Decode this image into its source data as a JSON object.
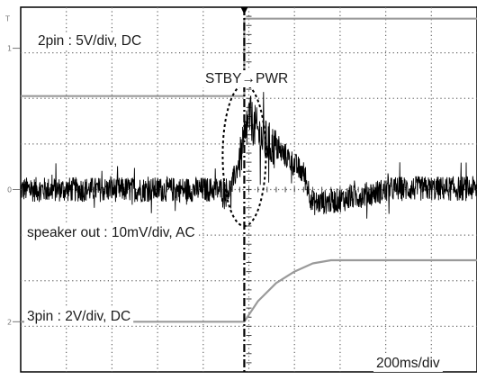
{
  "chart_data": {
    "type": "line",
    "title": "",
    "xlabel": "",
    "ylabel": "",
    "time_scale": "200ms/div",
    "grid": true,
    "divisions": {
      "x": 10,
      "y": 8
    },
    "event_label": "STBY→PWR",
    "x_unit": "div",
    "xlim": [
      0,
      10
    ],
    "ylim": [
      -4,
      4
    ],
    "series": [
      {
        "name": "2pin : 5V/div, DC",
        "channel_marker": "1",
        "ground_level_div": 3.1,
        "color": "#9a9a9a",
        "x": [
          0,
          4.9,
          4.9,
          10
        ],
        "y": [
          2.05,
          2.05,
          3.75,
          3.75
        ]
      },
      {
        "name": "speaker out : 10mV/div, AC",
        "channel_marker": "0",
        "ground_level_div": 0.0,
        "color": "#000000",
        "envelope": {
          "x": [
            0,
            4.6,
            4.9,
            5.0,
            5.3,
            5.8,
            6.2,
            6.4,
            6.9,
            7.5,
            8.2,
            10
          ],
          "y": [
            0.0,
            0.0,
            1.0,
            1.6,
            1.1,
            0.75,
            0.35,
            -0.3,
            -0.25,
            -0.12,
            0.02,
            0.02
          ],
          "noise_pp_div": 0.55
        }
      },
      {
        "name": "3pin : 2V/div, DC",
        "channel_marker": "2",
        "ground_level_div": -2.9,
        "color": "#9a9a9a",
        "x": [
          0,
          4.9,
          5.2,
          5.6,
          6.0,
          6.4,
          6.8,
          10
        ],
        "y": [
          -2.9,
          -2.9,
          -2.45,
          -2.05,
          -1.8,
          -1.62,
          -1.55,
          -1.55
        ]
      }
    ],
    "annotation": {
      "type": "dotted-ellipse",
      "around_x_div": 4.9,
      "y_range_div": [
        -0.8,
        2.3
      ]
    },
    "trigger_marker_x_div": 4.9
  }
}
